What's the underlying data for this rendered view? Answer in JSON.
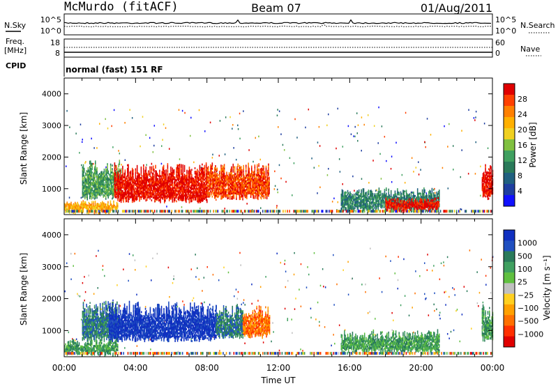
{
  "header": {
    "station": "McMurdo (fitACF)",
    "beam": "Beam 07",
    "date": "01/Aug/2011"
  },
  "status_panels": {
    "nsky_label": "N.Sky",
    "nsky_ticks": [
      "10^5",
      "10^0"
    ],
    "nsearch_label": "N.Search",
    "nsearch_ticks": [
      "10^5",
      "10^0"
    ],
    "freq_label_1": "Freq.",
    "freq_label_2": "[MHz]",
    "freq_ticks": [
      "18",
      "8"
    ],
    "nave_label": "Nave",
    "nave_ticks": [
      "60",
      "0"
    ],
    "cpid_label": "CPID",
    "cpid_text": "normal (fast) 151 RF"
  },
  "chart_data": [
    {
      "type": "heatmap",
      "name": "power-panel",
      "ylabel": "Slant Range [km]",
      "yticks": [
        1000,
        2000,
        3000,
        4000
      ],
      "ylim": [
        180,
        4500
      ],
      "xlim": [
        0,
        24
      ],
      "xticks": [
        "00:00",
        "04:00",
        "08:00",
        "12:00",
        "16:00",
        "20:00",
        "00:00"
      ],
      "colorbar": {
        "label": "Power [dB]",
        "ticks": [
          "28",
          "24",
          "20",
          "16",
          "12",
          "8",
          "4"
        ],
        "colors": [
          "#e00000",
          "#ff4000",
          "#ff8000",
          "#ffb000",
          "#f0d020",
          "#80c040",
          "#40a060",
          "#2a7a5a",
          "#206080",
          "#1e3ea0",
          "#1010ff"
        ]
      },
      "regions": [
        {
          "t0": 1.0,
          "t1": 3.2,
          "r0": 700,
          "r1": 1900,
          "level": 6
        },
        {
          "t0": 2.8,
          "t1": 8.0,
          "r0": 600,
          "r1": 1800,
          "level": 0
        },
        {
          "t0": 8.0,
          "t1": 11.5,
          "r0": 700,
          "r1": 1800,
          "level": 1
        },
        {
          "t0": 0.0,
          "t1": 3.0,
          "r0": 250,
          "r1": 600,
          "level": 3
        },
        {
          "t0": 15.5,
          "t1": 21.0,
          "r0": 300,
          "r1": 1000,
          "level": 7
        },
        {
          "t0": 18.0,
          "t1": 21.0,
          "r0": 300,
          "r1": 700,
          "level": 0
        },
        {
          "t0": 23.4,
          "t1": 24.0,
          "r0": 700,
          "r1": 1800,
          "level": 0
        }
      ]
    },
    {
      "type": "heatmap",
      "name": "velocity-panel",
      "ylabel": "Slant Range [km]",
      "yticks": [
        1000,
        2000,
        3000,
        4000
      ],
      "ylim": [
        180,
        4500
      ],
      "xlim": [
        0,
        24
      ],
      "xticks": [
        "00:00",
        "04:00",
        "08:00",
        "12:00",
        "16:00",
        "20:00",
        "00:00"
      ],
      "xlabel": "Time UT",
      "colorbar": {
        "label": "Velocity [m s⁻¹]",
        "ticks": [
          "1000",
          "500",
          "100",
          "25",
          "−25",
          "−100",
          "−500",
          "−1000"
        ],
        "colors": [
          "#1030c0",
          "#2050c0",
          "#2a7a5a",
          "#40a060",
          "#60c040",
          "#c0c0c0",
          "#ffd020",
          "#ffa000",
          "#ff7000",
          "#ff3000",
          "#e00000"
        ]
      },
      "regions": [
        {
          "t0": 1.0,
          "t1": 3.0,
          "r0": 700,
          "r1": 1900,
          "level": 2
        },
        {
          "t0": 2.5,
          "t1": 8.5,
          "r0": 700,
          "r1": 1900,
          "level": 0
        },
        {
          "t0": 8.5,
          "t1": 10.0,
          "r0": 800,
          "r1": 1800,
          "level": 2
        },
        {
          "t0": 10.0,
          "t1": 11.5,
          "r0": 800,
          "r1": 1800,
          "level": 8
        },
        {
          "t0": 0.0,
          "t1": 3.0,
          "r0": 250,
          "r1": 700,
          "level": 3
        },
        {
          "t0": 15.5,
          "t1": 21.0,
          "r0": 300,
          "r1": 1000,
          "level": 3
        },
        {
          "t0": 23.4,
          "t1": 24.0,
          "r0": 700,
          "r1": 1800,
          "level": 3
        }
      ]
    }
  ]
}
